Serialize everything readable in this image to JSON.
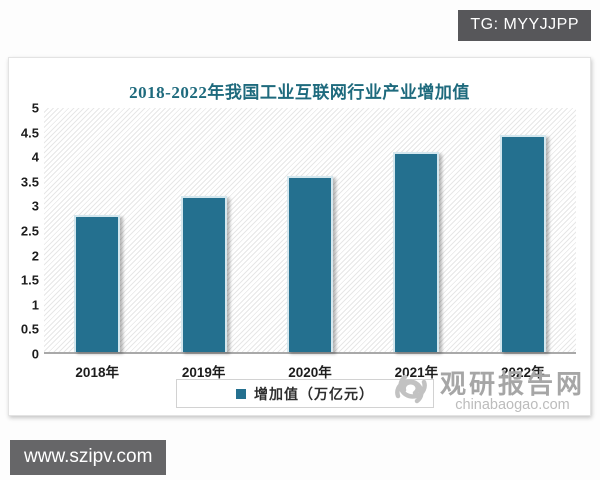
{
  "page": {
    "tg_badge": "TG: MYYJJPP",
    "bottom_badge": "www.szipv.com"
  },
  "watermark": {
    "site_name": "观研报告网",
    "site_url": "chinabaogao.com"
  },
  "chart_data": {
    "type": "bar",
    "title": "2018-2022年我国工业互联网行业产业增加值",
    "categories": [
      "2018年",
      "2019年",
      "2020年",
      "2021年",
      "2022年"
    ],
    "values": [
      2.8,
      3.2,
      3.6,
      4.1,
      4.45
    ],
    "legend": "增加值（万亿元）",
    "legend_position": "bottom",
    "xlabel": "",
    "ylabel": "",
    "ylim": [
      0,
      5
    ],
    "ytick_step": 0.5,
    "yticks": [
      "0",
      "0.5",
      "1",
      "1.5",
      "2",
      "2.5",
      "3",
      "3.5",
      "4",
      "4.5",
      "5"
    ],
    "grid": false,
    "plot_background": "diagonal-hatch",
    "colors": {
      "bar": "#24708f",
      "bar_border": "#d4e7ee",
      "title": "#1e6a7d",
      "axis_line": "#a9a9a9",
      "badge_background": "#57575a",
      "watermark_gray": "#a6a6a6"
    }
  }
}
